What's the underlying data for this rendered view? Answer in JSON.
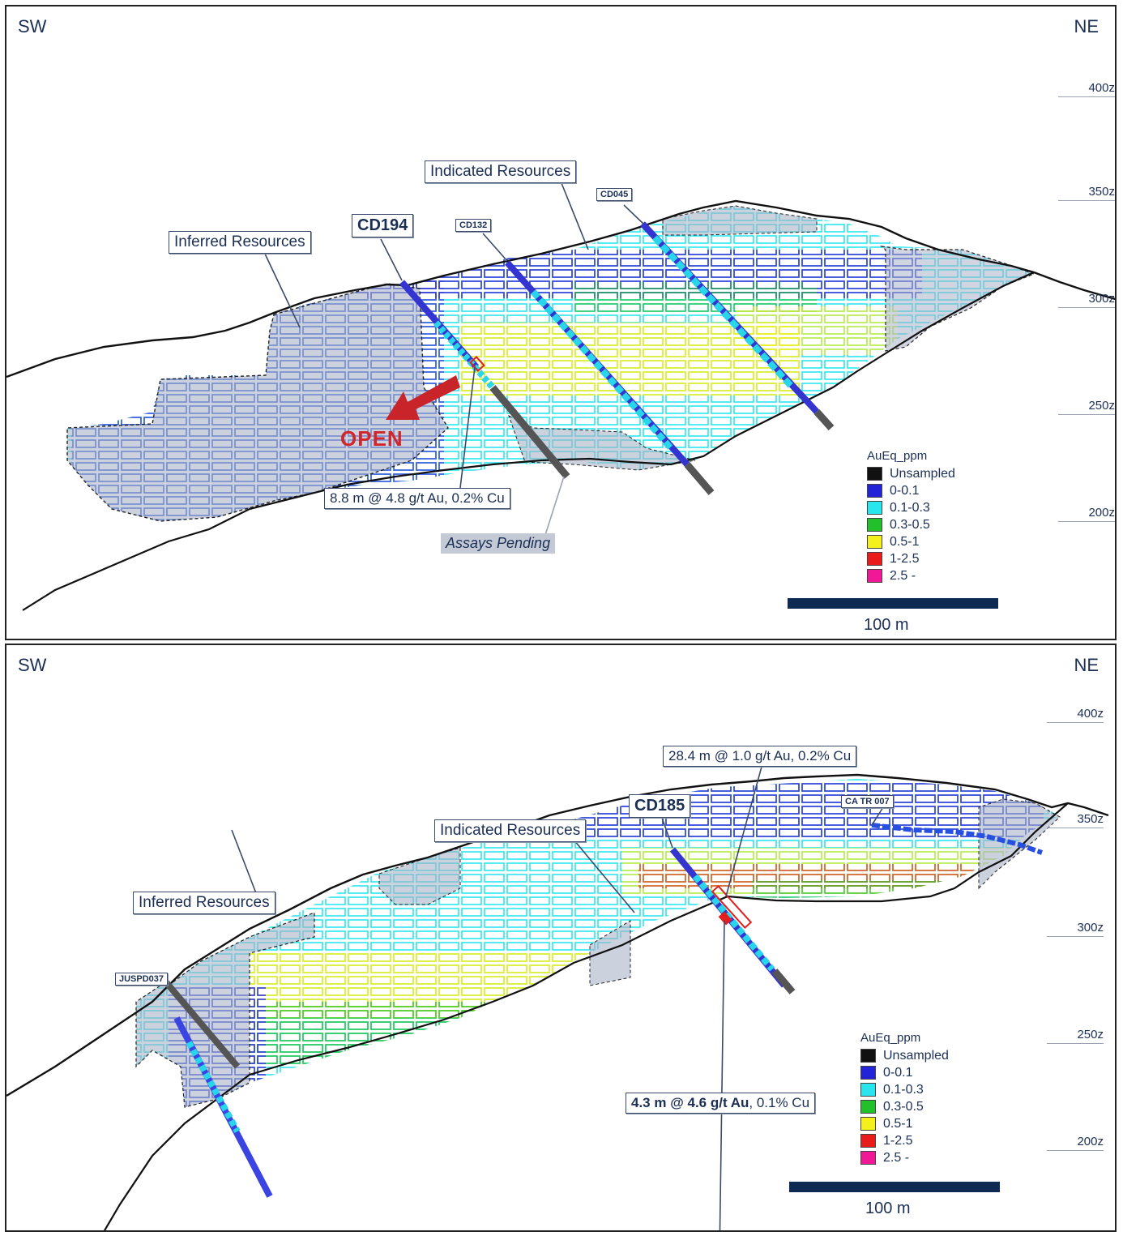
{
  "colors": {
    "unsampled": "#111111",
    "b0": "#2323d8",
    "b1": "#29e6ee",
    "b2": "#22c02a",
    "b3": "#f3f01c",
    "b4": "#ea1b1b",
    "b5": "#f01896",
    "inferred_fill": "#aab2c8",
    "dark_blue": "#0f2a52",
    "open_red": "#d3262a"
  },
  "top_panel": {
    "dir_left": "SW",
    "dir_right": "NE",
    "elevations": [
      "400z",
      "350z",
      "300z",
      "250z",
      "200z"
    ],
    "labels": {
      "inferred": "Inferred Resources",
      "indicated": "Indicated Resources",
      "hole_main": "CD194",
      "hole_b": "CD132",
      "hole_c": "CD045",
      "intercept": "8.8 m @ 4.8 g/t Au, 0.2% Cu",
      "pending": "Assays Pending",
      "open": "OPEN"
    },
    "legend": {
      "title": "AuEq_ppm",
      "items": [
        {
          "label": "Unsampled",
          "color": "#111111"
        },
        {
          "label": "0-0.1",
          "color": "#2323d8"
        },
        {
          "label": "0.1-0.3",
          "color": "#29e6ee"
        },
        {
          "label": "0.3-0.5",
          "color": "#22c02a"
        },
        {
          "label": "0.5-1",
          "color": "#f3f01c"
        },
        {
          "label": "1-2.5",
          "color": "#ea1b1b"
        },
        {
          "label": "2.5 -",
          "color": "#f01896"
        }
      ]
    },
    "scale_label": "100  m"
  },
  "bottom_panel": {
    "dir_left": "SW",
    "dir_right": "NE",
    "elevations": [
      "400z",
      "350z",
      "300z",
      "250z",
      "200z"
    ],
    "labels": {
      "inferred": "Inferred Resources",
      "indicated": "Indicated Resources",
      "hole_main": "CD185",
      "hole_b": "JUSPD037",
      "hole_c": "CA TR 007",
      "intercept_a": "28.4 m @ 1.0 g/t Au, 0.2% Cu",
      "intercept_b_bold": "4.3 m @ 4.6 g/t Au",
      "intercept_b_rest": ", 0.1% Cu"
    },
    "legend": {
      "title": "AuEq_ppm",
      "items": [
        {
          "label": "Unsampled",
          "color": "#111111"
        },
        {
          "label": "0-0.1",
          "color": "#2323d8"
        },
        {
          "label": "0.1-0.3",
          "color": "#29e6ee"
        },
        {
          "label": "0.3-0.5",
          "color": "#22c02a"
        },
        {
          "label": "0.5-1",
          "color": "#f3f01c"
        },
        {
          "label": "1-2.5",
          "color": "#ea1b1b"
        },
        {
          "label": "2.5 -",
          "color": "#f01896"
        }
      ]
    },
    "scale_label": "100  m"
  }
}
